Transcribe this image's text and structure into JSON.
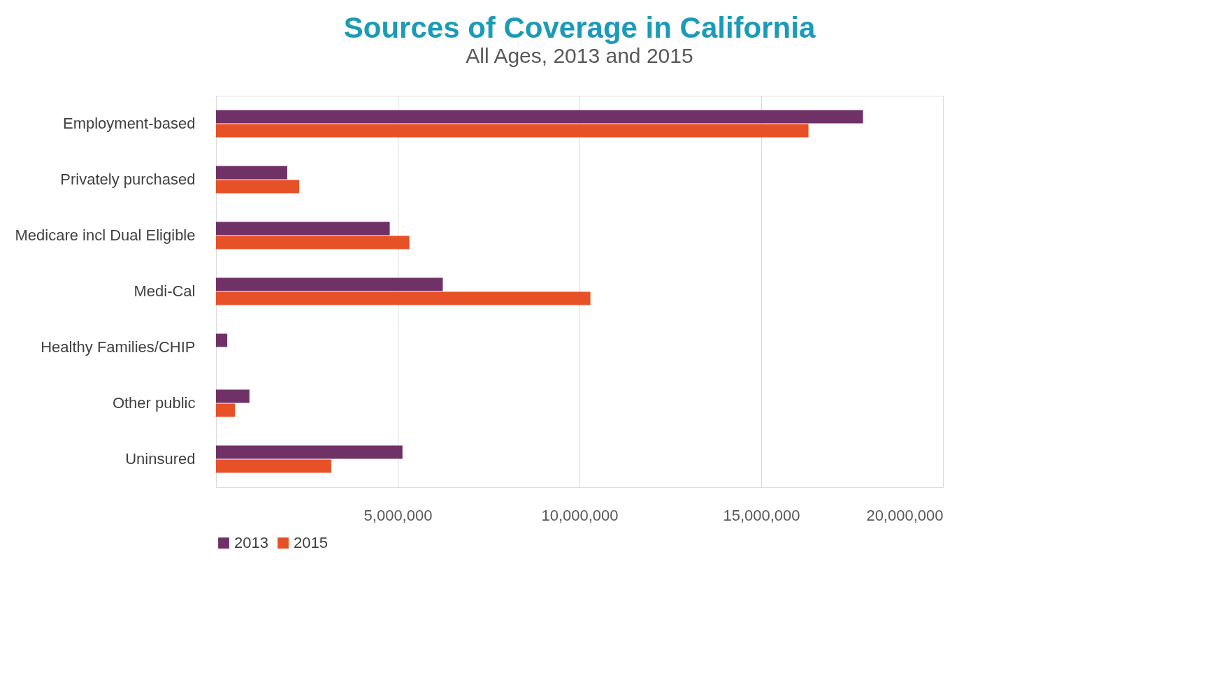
{
  "chart_data": {
    "type": "bar",
    "orientation": "horizontal",
    "title": "Sources of Coverage in California",
    "subtitle": "All Ages, 2013 and 2015",
    "categories": [
      "Employment-based",
      "Privately purchased",
      "Medicare incl Dual Eligible",
      "Medi-Cal",
      "Healthy Families/CHIP",
      "Other public",
      "Uninsured"
    ],
    "series": [
      {
        "name": "2013",
        "color": "#6f3166",
        "values": [
          17800000,
          1960000,
          4780000,
          6240000,
          310000,
          920000,
          5130000
        ]
      },
      {
        "name": "2015",
        "color": "#e65127",
        "values": [
          16300000,
          2290000,
          5320000,
          10300000,
          null,
          520000,
          3170000
        ]
      }
    ],
    "xlim": [
      0,
      20000000
    ],
    "xticks": [
      {
        "value": 0,
        "label": null
      },
      {
        "value": 5000000,
        "label": "5,000,000"
      },
      {
        "value": 10000000,
        "label": "10,000,000"
      },
      {
        "value": 15000000,
        "label": "15,000,000"
      },
      {
        "value": 20000000,
        "label": "20,000,000"
      }
    ],
    "grid": "x",
    "legend": "bottom"
  }
}
